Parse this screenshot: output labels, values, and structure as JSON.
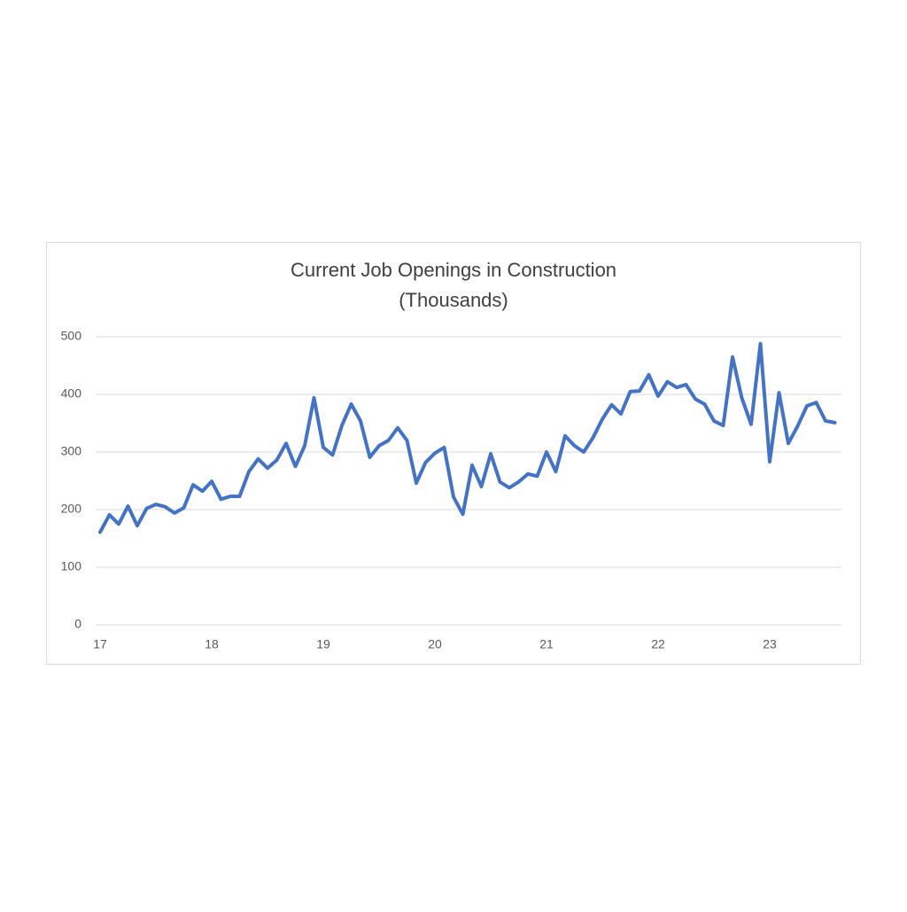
{
  "chart_data": {
    "type": "line",
    "title": "Current Job Openings in Construction",
    "subtitle": "(Thousands)",
    "categories": [
      "17",
      null,
      null,
      null,
      null,
      null,
      null,
      null,
      null,
      null,
      null,
      null,
      "18",
      null,
      null,
      null,
      null,
      null,
      null,
      null,
      null,
      null,
      null,
      null,
      "19",
      null,
      null,
      null,
      null,
      null,
      null,
      null,
      null,
      null,
      null,
      null,
      "20",
      null,
      null,
      null,
      null,
      null,
      null,
      null,
      null,
      null,
      null,
      null,
      "21",
      null,
      null,
      null,
      null,
      null,
      null,
      null,
      null,
      null,
      null,
      null,
      "22",
      null,
      null,
      null,
      null,
      null,
      null,
      null,
      null,
      null,
      null,
      null,
      "23",
      null,
      null,
      null,
      null,
      null,
      null,
      null
    ],
    "values": [
      161,
      191,
      175,
      206,
      172,
      202,
      209,
      205,
      194,
      203,
      243,
      232,
      249,
      218,
      223,
      223,
      266,
      288,
      272,
      286,
      315,
      275,
      311,
      394,
      308,
      295,
      346,
      383,
      354,
      291,
      311,
      320,
      342,
      320,
      246,
      282,
      298,
      308,
      222,
      192,
      277,
      240,
      297,
      248,
      238,
      248,
      262,
      258,
      300,
      266,
      328,
      311,
      300,
      325,
      357,
      382,
      366,
      405,
      406,
      434,
      397,
      422,
      412,
      417,
      392,
      383,
      354,
      346,
      465,
      394,
      348,
      488,
      283,
      403,
      315,
      345,
      380,
      386,
      354,
      351
    ],
    "color": "#4472c4",
    "ylim": [
      0,
      500
    ],
    "yticks": [
      0,
      100,
      200,
      300,
      400,
      500
    ],
    "grid": true
  }
}
